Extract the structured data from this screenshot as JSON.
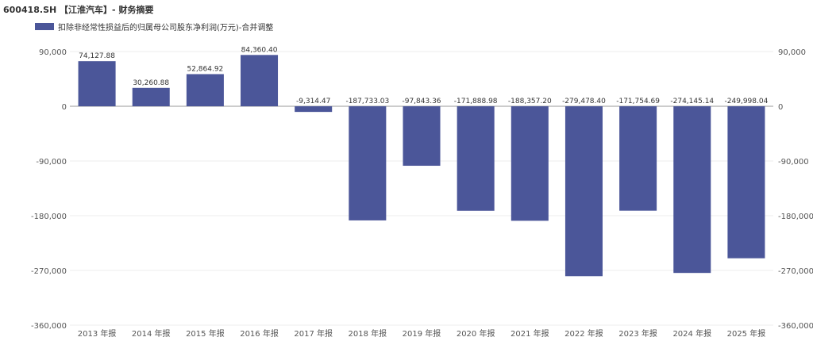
{
  "chart_data": {
    "type": "bar",
    "title": "600418.SH 【江淮汽车】- 财务摘要",
    "series": [
      {
        "name": "扣除非经常性损益后的归属母公司股东净利润(万元)-合并调整",
        "values": [
          74127.88,
          30260.88,
          52864.92,
          84360.4,
          -9314.47,
          -187733.03,
          -97843.36,
          -171888.98,
          -188357.2,
          -279478.4,
          -171754.69,
          -274145.14,
          -249998.04
        ],
        "labels": [
          "74,127.88",
          "30,260.88",
          "52,864.92",
          "84,360.40",
          "-9,314.47",
          "-187,733.03",
          "-97,843.36",
          "-171,888.98",
          "-188,357.20",
          "-279,478.40",
          "-171,754.69",
          "-274,145.14",
          "-249,998.04"
        ],
        "color": "#4b5699"
      }
    ],
    "categories": [
      "2013 年报",
      "2014 年报",
      "2015 年报",
      "2016 年报",
      "2017 年报",
      "2018 年报",
      "2019 年报",
      "2020 年报",
      "2021 年报",
      "2022 年报",
      "2023 年报",
      "2024 年报",
      "2025 年报"
    ],
    "ylim": [
      -360000,
      90000
    ],
    "yticks": [
      90000,
      0,
      -90000,
      -180000,
      -270000,
      -360000
    ],
    "ytick_labels": [
      "90,000",
      "0",
      "-90,000",
      "-180,000",
      "-270,000",
      "-360,000"
    ],
    "grid": true,
    "legend": "top-left",
    "dual_axis_mirror": true
  }
}
